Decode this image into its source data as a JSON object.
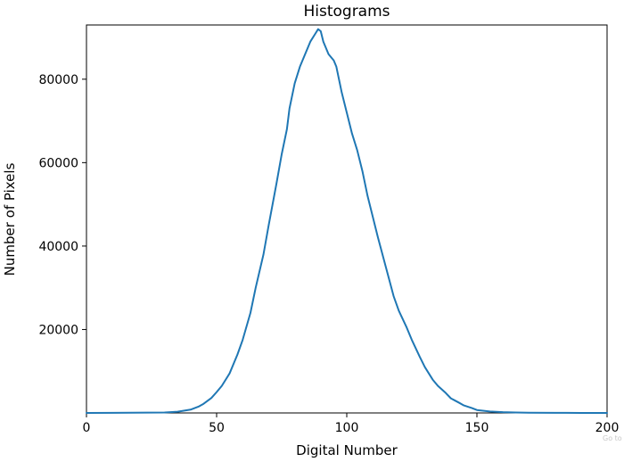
{
  "chart_data": {
    "type": "line",
    "title": "Histograms",
    "xlabel": "Digital Number",
    "ylabel": "Number of Pixels",
    "xlim": [
      0,
      200
    ],
    "ylim": [
      0,
      93000
    ],
    "xticks": [
      0,
      50,
      100,
      150,
      200
    ],
    "yticks": [
      20000,
      40000,
      60000,
      80000
    ],
    "grid": false,
    "series": [
      {
        "color": "#1f77b4",
        "x": [
          0,
          30,
          35,
          40,
          43,
          45,
          48,
          50,
          52,
          55,
          58,
          60,
          63,
          65,
          68,
          70,
          73,
          75,
          77,
          78,
          80,
          82,
          84,
          86,
          88,
          89,
          90,
          91,
          92,
          93,
          95,
          96,
          97,
          98,
          100,
          102,
          104,
          106,
          108,
          110,
          112,
          115,
          118,
          120,
          123,
          125,
          128,
          130,
          133,
          135,
          138,
          140,
          143,
          145,
          148,
          150,
          155,
          160,
          165,
          170,
          180,
          190,
          200
        ],
        "y": [
          0,
          100,
          300,
          800,
          1500,
          2200,
          3600,
          5000,
          6500,
          9500,
          14000,
          17500,
          24000,
          30000,
          38000,
          45000,
          55000,
          62000,
          68000,
          73000,
          79000,
          83000,
          86000,
          89000,
          91000,
          92000,
          91500,
          89000,
          87500,
          86000,
          84500,
          83000,
          80000,
          77000,
          72000,
          67000,
          63000,
          58000,
          52000,
          47000,
          42000,
          35000,
          28000,
          24500,
          20500,
          17500,
          13500,
          11000,
          8000,
          6500,
          4800,
          3500,
          2500,
          1800,
          1200,
          700,
          350,
          180,
          100,
          50,
          20,
          10,
          5
        ]
      }
    ]
  },
  "overlay": {
    "corner_text": "Go to"
  }
}
